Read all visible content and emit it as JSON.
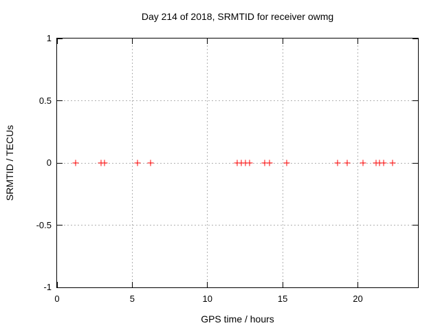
{
  "chart_data": {
    "type": "scatter",
    "title": "Day 214 of 2018, SRMTID for receiver owmg",
    "xlabel": "GPS time / hours",
    "ylabel": "SRMTID / TECUs",
    "xlim": [
      0,
      24
    ],
    "ylim": [
      -1,
      1
    ],
    "xticks": {
      "values": [
        0,
        5,
        10,
        15,
        20
      ],
      "labels": [
        "0",
        "5",
        "10",
        "15",
        "20"
      ]
    },
    "yticks": {
      "values": [
        1,
        0.5,
        0,
        -0.5,
        -1
      ],
      "labels": [
        "1",
        "0.5",
        "0",
        "-0.5",
        "-1"
      ]
    },
    "grid": true,
    "legend": "none",
    "marker": {
      "shape": "plus-icon",
      "color": "#ff0000",
      "size": 9
    },
    "series": [
      {
        "name": "SRMTID",
        "x": [
          1.22,
          2.91,
          3.17,
          5.37,
          6.21,
          11.97,
          12.24,
          12.51,
          12.79,
          13.82,
          14.12,
          15.29,
          18.65,
          19.3,
          20.34,
          21.22,
          21.45,
          21.72,
          22.31
        ],
        "y": [
          0,
          0,
          0,
          0,
          0,
          0,
          0,
          0,
          0,
          0,
          0,
          0,
          0,
          0,
          0,
          0,
          0,
          0,
          0
        ]
      }
    ]
  },
  "colors": {
    "background": "#ffffff",
    "border": "#000000",
    "grid": "#b0b0b0",
    "marker": "#ff0000",
    "text": "#000000"
  }
}
